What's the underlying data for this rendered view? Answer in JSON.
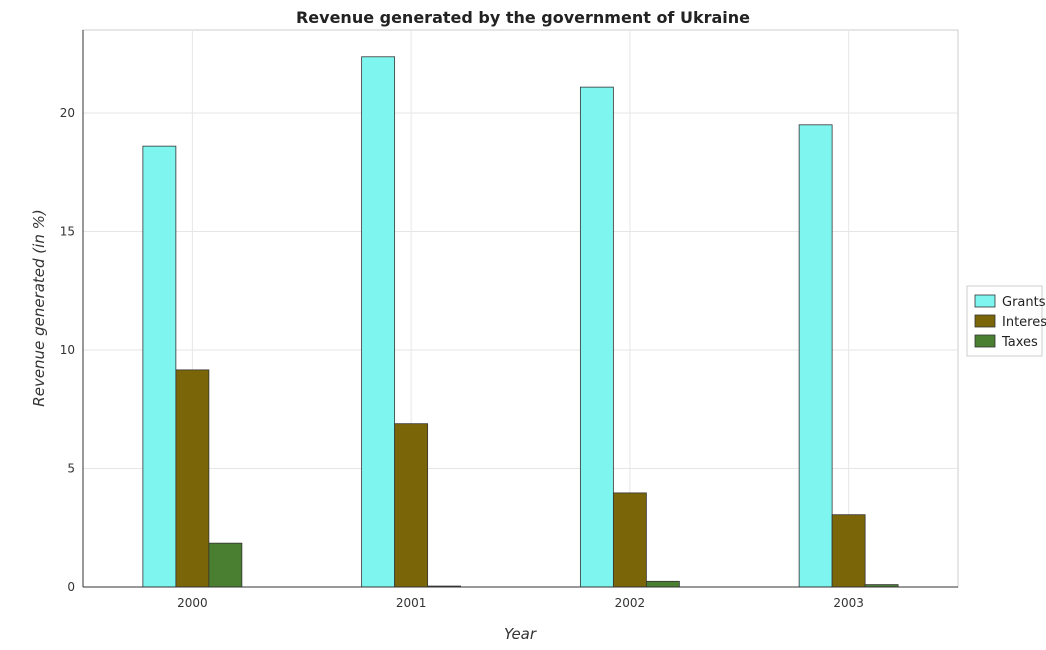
{
  "chart_data": {
    "type": "bar",
    "title": "Revenue generated by the government of Ukraine",
    "xlabel": "Year",
    "ylabel": "Revenue generated (in %)",
    "categories": [
      "2000",
      "2001",
      "2002",
      "2003"
    ],
    "ylim": [
      0,
      23.5
    ],
    "yticks": [
      0,
      5,
      10,
      15,
      20
    ],
    "grid": true,
    "legend_position": "right",
    "series": [
      {
        "name": "Grants",
        "color": "#7ff5f0",
        "values": [
          18.6,
          22.37,
          21.09,
          19.5
        ]
      },
      {
        "name": "Interest",
        "color": "#7a6608",
        "values": [
          9.16,
          6.89,
          3.97,
          3.05
        ]
      },
      {
        "name": "Taxes",
        "color": "#4a7f32",
        "values": [
          1.85,
          0.04,
          0.24,
          0.1
        ]
      }
    ]
  }
}
